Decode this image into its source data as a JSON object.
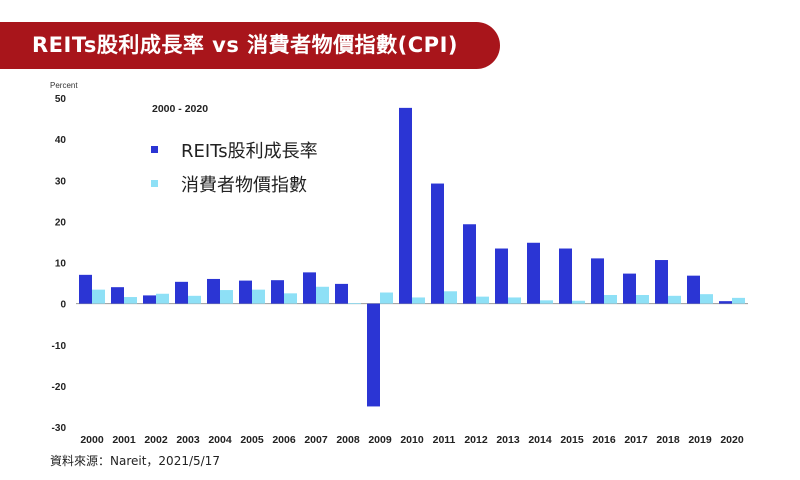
{
  "banner": {
    "title": "REITs股利成長率 vs 消費者物價指數(CPI)"
  },
  "source": "資料來源：Nareit，2021/5/17",
  "colors": {
    "banner": "#a8151b",
    "reit": "#2b35d4",
    "cpi": "#8ee0f6"
  },
  "chart_data": {
    "type": "bar",
    "title": "",
    "subtitle": "2000 - 2020",
    "ylabel": "Percent",
    "xlabel": "",
    "ylim": [
      -30,
      50
    ],
    "yticks": [
      50,
      40,
      30,
      20,
      10,
      0,
      -10,
      -20,
      -30
    ],
    "grid": false,
    "legend_position": "top-left",
    "categories": [
      "2000",
      "2001",
      "2002",
      "2003",
      "2004",
      "2005",
      "2006",
      "2007",
      "2008",
      "2009",
      "2010",
      "2011",
      "2012",
      "2013",
      "2014",
      "2015",
      "2016",
      "2017",
      "2018",
      "2019",
      "2020"
    ],
    "series": [
      {
        "name": "REITs股利成長率",
        "color": "#2b35d4",
        "values": [
          7.0,
          4.0,
          2.0,
          5.3,
          6.0,
          5.6,
          5.7,
          7.6,
          4.8,
          -25.0,
          47.6,
          29.2,
          19.3,
          13.4,
          14.8,
          13.4,
          11.0,
          7.3,
          10.6,
          6.8,
          0.6
        ]
      },
      {
        "name": "消費者物價指數",
        "color": "#8ee0f6",
        "values": [
          3.4,
          1.6,
          2.4,
          1.9,
          3.3,
          3.4,
          2.5,
          4.1,
          0.1,
          2.7,
          1.5,
          3.0,
          1.7,
          1.5,
          0.8,
          0.7,
          2.1,
          2.1,
          1.9,
          2.3,
          1.4
        ]
      }
    ]
  }
}
